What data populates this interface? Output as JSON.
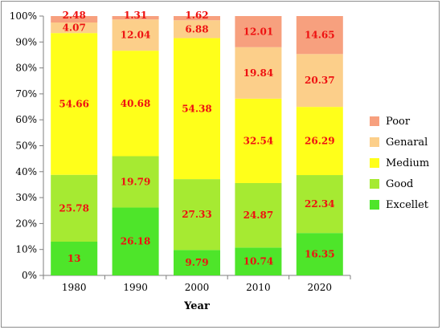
{
  "chart_data": {
    "type": "bar",
    "stacked": true,
    "percent_stacked": true,
    "xlabel": "Year",
    "ylabel": "",
    "ylim": [
      0,
      100
    ],
    "y_ticks": [
      "0%",
      "10%",
      "20%",
      "30%",
      "40%",
      "50%",
      "60%",
      "70%",
      "80%",
      "90%",
      "100%"
    ],
    "categories": [
      "1980",
      "1990",
      "2000",
      "2010",
      "2020"
    ],
    "series": [
      {
        "name": "Excellet",
        "color": "#4ee52a",
        "values": [
          13,
          26.18,
          9.79,
          10.74,
          16.35
        ],
        "labels": [
          "13",
          "26.18",
          "9.79",
          "10.74",
          "16.35"
        ]
      },
      {
        "name": "Good",
        "color": "#a6ea32",
        "values": [
          25.78,
          19.79,
          27.33,
          24.87,
          22.34
        ],
        "labels": [
          "25.78",
          "19.79",
          "27.33",
          "24.87",
          "22.34"
        ]
      },
      {
        "name": "Medium",
        "color": "#ffff1a",
        "values": [
          54.66,
          40.68,
          54.38,
          32.54,
          26.29
        ],
        "labels": [
          "54.66",
          "40.68",
          "54.38",
          "32.54",
          "26.29"
        ]
      },
      {
        "name": "Genaral",
        "color": "#fccf8a",
        "values": [
          4.07,
          12.04,
          6.88,
          19.84,
          20.37
        ],
        "labels": [
          "4.07",
          "12.04",
          "6.88",
          "19.84",
          "20.37"
        ]
      },
      {
        "name": "Poor",
        "color": "#f7a07e",
        "values": [
          2.48,
          1.31,
          1.62,
          12.01,
          14.65
        ],
        "labels": [
          "2.48",
          "1.31",
          "1.62",
          "12.01",
          "14.65"
        ]
      }
    ],
    "grid": false,
    "legend_position": "right",
    "legend_order": [
      "Poor",
      "Genaral",
      "Medium",
      "Good",
      "Excellet"
    ],
    "label_color": "#ee1111"
  }
}
